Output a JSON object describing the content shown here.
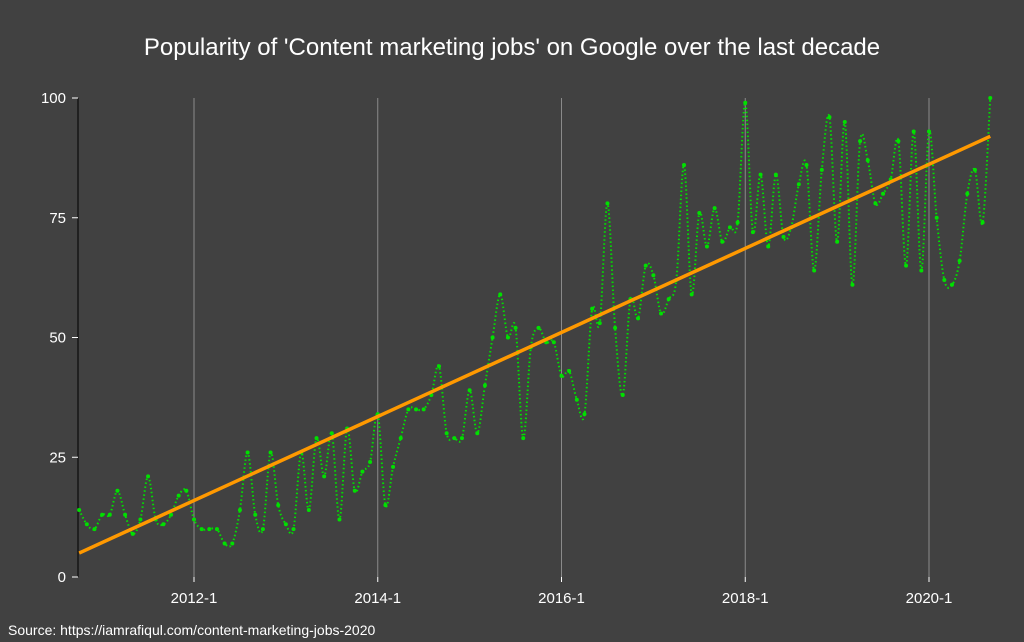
{
  "chart_data": {
    "type": "line",
    "title": "Popularity of  'Content marketing jobs' on Google over the last decade",
    "source": "Source: https://iamrafiqul.com/content-marketing-jobs-2020",
    "xlabel": "",
    "ylabel": "",
    "x_start": "2010-10",
    "x_end": "2020-09",
    "x_interval": "monthly",
    "x_ticks": [
      "2012-1",
      "2014-1",
      "2016-1",
      "2018-1",
      "2020-1"
    ],
    "y_ticks": [
      0,
      25,
      50,
      75,
      100
    ],
    "ylim": [
      0,
      100
    ],
    "grid": "vertical",
    "series": [
      {
        "style": "dotted",
        "color": "#00e000",
        "values": [
          14,
          11,
          10,
          13,
          13,
          18,
          13,
          9,
          12,
          21,
          12,
          11,
          13,
          17,
          18,
          12,
          10,
          10,
          10,
          7,
          7,
          14,
          26,
          13,
          10,
          26,
          15,
          11,
          10,
          26,
          14,
          29,
          21,
          30,
          12,
          31,
          18,
          22,
          24,
          34,
          15,
          23,
          29,
          35,
          35,
          35,
          38,
          44,
          30,
          29,
          29,
          39,
          30,
          40,
          50,
          59,
          50,
          52,
          29,
          48,
          52,
          49,
          49,
          42,
          43,
          37,
          34,
          56,
          53,
          78,
          52,
          38,
          58,
          54,
          65,
          63,
          55,
          58,
          62,
          86,
          59,
          76,
          69,
          77,
          70,
          73,
          74,
          99,
          72,
          84,
          69,
          84,
          71,
          73,
          82,
          86,
          64,
          85,
          96,
          70,
          95,
          61,
          91,
          87,
          78,
          80,
          83,
          91,
          65,
          93,
          64,
          93,
          75,
          62,
          61,
          66,
          80,
          85,
          74,
          100
        ]
      },
      {
        "type": "trendline",
        "color": "#ff9900",
        "values_start_end": [
          5,
          92
        ]
      }
    ]
  }
}
